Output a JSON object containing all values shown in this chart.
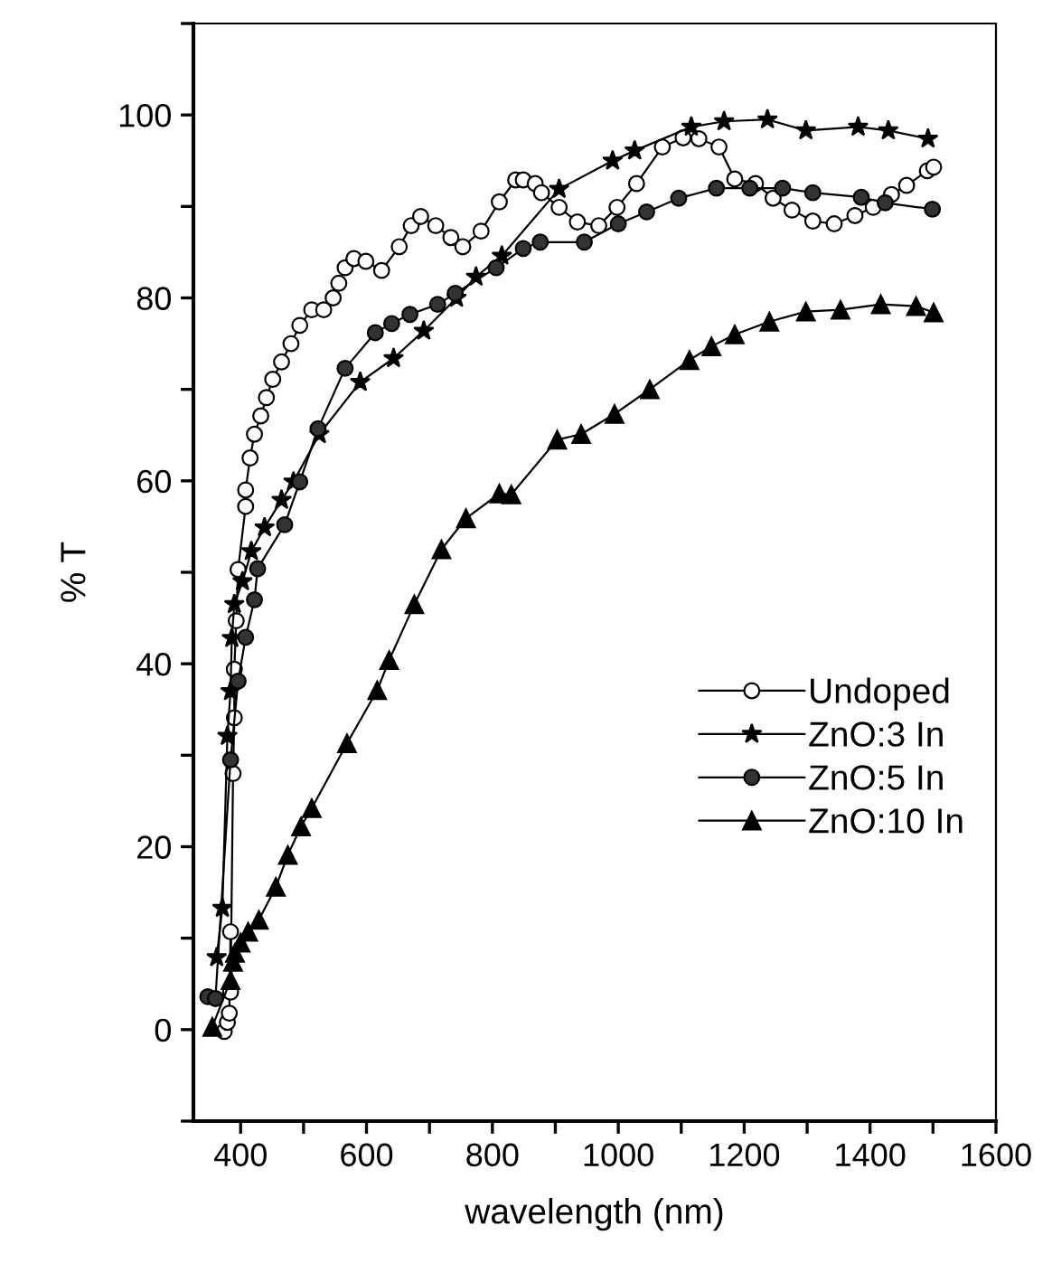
{
  "chart_data": {
    "type": "line",
    "xlabel": "wavelength (nm)",
    "ylabel": "% T",
    "xlim": [
      325,
      1600
    ],
    "ylim": [
      -10,
      110
    ],
    "xticks": [
      400,
      {
        "value": 500,
        "label": null
      },
      600,
      {
        "value": 700,
        "label": null
      },
      800,
      {
        "value": 900,
        "label": null
      },
      1000,
      {
        "value": 1100,
        "label": null
      },
      1200,
      {
        "value": 1300,
        "label": null
      },
      1400,
      {
        "value": 1500,
        "label": null
      },
      1600
    ],
    "yticks": [
      {
        "value": -10,
        "label": null
      },
      0,
      {
        "value": 10,
        "label": null
      },
      20,
      {
        "value": 30,
        "label": null
      },
      40,
      {
        "value": 50,
        "label": null
      },
      60,
      {
        "value": 70,
        "label": null
      },
      80,
      {
        "value": 90,
        "label": null
      },
      100,
      {
        "value": 110,
        "label": null
      }
    ],
    "grid": false,
    "legend": "right",
    "series": [
      {
        "name": "Undoped",
        "color": "#ffffff",
        "marker": "circle",
        "x": [
          374,
          379,
          382,
          384,
          384,
          388,
          390,
          390,
          393,
          396,
          408,
          408,
          415,
          422,
          432,
          441,
          451,
          465,
          480,
          494,
          513,
          532,
          547,
          556,
          566,
          580,
          599,
          624,
          652,
          671,
          686,
          710,
          734,
          753,
          782,
          811,
          837,
          849,
          868,
          878,
          906,
          935,
          969,
          998,
          1029,
          1070,
          1103,
          1128,
          1160,
          1185,
          1218,
          1246,
          1276,
          1309,
          1343,
          1376,
          1405,
          1434,
          1458,
          1491,
          1501
        ],
        "values": [
          -0.2,
          0.8,
          1.8,
          10.7,
          4.1,
          28,
          34.1,
          39.4,
          44.7,
          50.3,
          57.2,
          59,
          62.5,
          65.1,
          67.1,
          69.1,
          71.1,
          73,
          75,
          77,
          78.7,
          78.7,
          80,
          81.6,
          83.3,
          84.3,
          84,
          83,
          85.6,
          87.9,
          88.9,
          87.9,
          86.6,
          85.6,
          87.3,
          90.5,
          92.9,
          92.9,
          92.5,
          91.5,
          89.9,
          88.3,
          87.9,
          89.9,
          92.5,
          96.5,
          97.5,
          97.4,
          96.5,
          93,
          92.5,
          90.9,
          89.6,
          88.4,
          88.1,
          89,
          89.9,
          91.3,
          92.3,
          93.9,
          94.3
        ]
      },
      {
        "name": "ZnO:3 In",
        "color": "#000000",
        "marker": "star",
        "x": [
          362,
          371,
          379,
          384,
          386,
          390,
          403,
          417,
          438,
          465,
          484,
          525,
          590,
          643,
          691,
          743,
          774,
          815,
          906,
          991,
          1026,
          1116,
          1168,
          1237,
          1298,
          1381,
          1429,
          1492
        ],
        "values": [
          7.9,
          13.3,
          32.1,
          37,
          42.8,
          46.5,
          49,
          52.3,
          54.9,
          57.9,
          59.9,
          65.1,
          70.8,
          73.4,
          76.4,
          80,
          82.3,
          84.6,
          91.9,
          95,
          96.1,
          98.7,
          99.3,
          99.5,
          98.3,
          98.7,
          98.3,
          97.4
        ]
      },
      {
        "name": "ZnO:5 In",
        "color": "#333333",
        "marker": "circle",
        "x": [
          348,
          360,
          384,
          396,
          408,
          422,
          427,
          470,
          494,
          523,
          566,
          614,
          640,
          669,
          713,
          741,
          806,
          849,
          876,
          946,
          1000,
          1045,
          1096,
          1156,
          1209,
          1261,
          1309,
          1386,
          1424,
          1499
        ],
        "values": [
          3.6,
          3.4,
          29.5,
          38.1,
          42.9,
          47,
          50.4,
          55.2,
          59.9,
          65.7,
          72.3,
          76.2,
          77.2,
          78.2,
          79.3,
          80.5,
          83.3,
          85.4,
          86.1,
          86.1,
          88.1,
          89.4,
          90.9,
          92,
          92,
          92,
          91.5,
          91,
          90.4,
          89.7
        ]
      },
      {
        "name": "ZnO:10 In",
        "color": "#000000",
        "marker": "triangle",
        "x": [
          355,
          384,
          388,
          391,
          400,
          412,
          429,
          456,
          475,
          496,
          513,
          569,
          617,
          636,
          676,
          719,
          758,
          811,
          830,
          903,
          941,
          994,
          1050,
          1113,
          1148,
          1185,
          1240,
          1298,
          1353,
          1417,
          1473,
          1501
        ],
        "values": [
          0.3,
          5.4,
          7.4,
          8.4,
          9.5,
          10.7,
          12,
          15.6,
          19.1,
          22.2,
          24.2,
          31.3,
          37.1,
          40.4,
          46.5,
          52.5,
          55.9,
          58.6,
          58.5,
          64.5,
          65.1,
          67.3,
          70,
          73.2,
          74.7,
          76,
          77.4,
          78.5,
          78.7,
          79.3,
          79.1,
          78.4
        ]
      }
    ]
  }
}
